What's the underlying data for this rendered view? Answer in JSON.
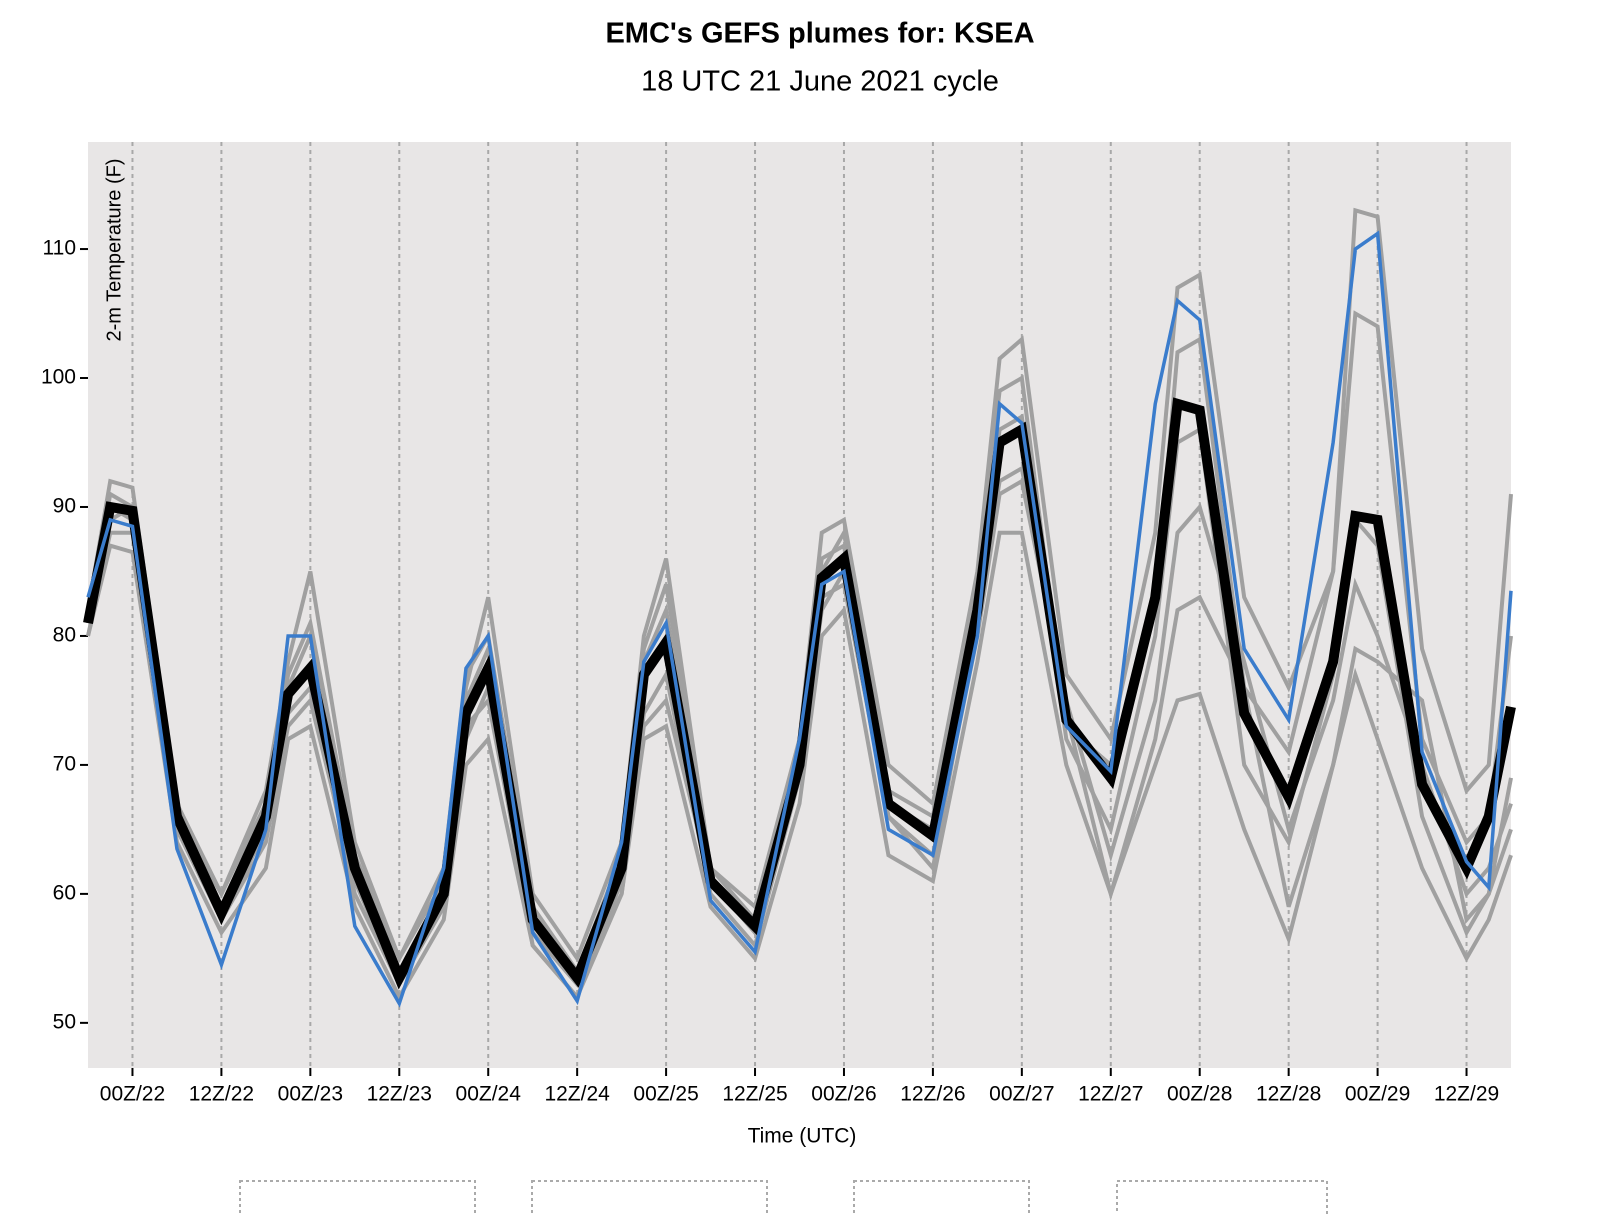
{
  "chart_data": {
    "type": "line",
    "title": "EMC's GEFS plumes for: KSEA",
    "subtitle": "18 UTC 21 June 2021 cycle",
    "x_label": "Time (UTC)",
    "y_label": "2-m Temperature (F)",
    "x": [
      0,
      3,
      6,
      12,
      18,
      24,
      27,
      30,
      36,
      42,
      48,
      51,
      54,
      60,
      66,
      72,
      75,
      78,
      84,
      90,
      96,
      99,
      102,
      108,
      114,
      120,
      123,
      126,
      132,
      138,
      144,
      147,
      150,
      156,
      162,
      168,
      171,
      174,
      180,
      186,
      189,
      192
    ],
    "series": [
      {
        "color": "#a0a0a0",
        "line_width": 4,
        "values": [
          82,
          92,
          91.5,
          67,
          60,
          68,
          78,
          85,
          64,
          55,
          61,
          76,
          83,
          60,
          55,
          64,
          80,
          86,
          62,
          59,
          72,
          88,
          89,
          70,
          67,
          85,
          101.5,
          103,
          77,
          72,
          88,
          107,
          108,
          83,
          76,
          85,
          113,
          112.5,
          79,
          68,
          70,
          91
        ]
      },
      {
        "color": "#a0a0a0",
        "line_width": 4,
        "values": [
          80,
          87,
          86.5,
          64,
          57,
          62,
          72,
          73,
          59,
          52,
          58,
          70,
          72,
          56,
          52,
          60,
          72,
          73,
          59,
          55,
          67,
          80,
          82,
          63,
          61,
          78,
          88,
          88,
          70,
          60,
          70,
          75,
          75.5,
          65,
          56.5,
          70,
          77,
          72,
          62,
          55,
          58,
          63
        ]
      },
      {
        "color": "#a0a0a0",
        "line_width": 4,
        "values": [
          81,
          89,
          90,
          66,
          59,
          66,
          76,
          80,
          62,
          54,
          60,
          75,
          79,
          57,
          53,
          62,
          78,
          82,
          61,
          57,
          71,
          86,
          87,
          67,
          65,
          83,
          96,
          97,
          72,
          65,
          80,
          95,
          96,
          70,
          64,
          77,
          89,
          87,
          66,
          57,
          60,
          69
        ]
      },
      {
        "color": "#a0a0a0",
        "line_width": 4,
        "values": [
          82,
          90,
          89,
          65,
          58,
          65,
          74,
          76,
          60,
          53,
          59,
          72,
          76,
          56,
          52,
          61,
          74,
          77,
          60,
          56,
          69,
          82,
          85,
          66,
          63,
          80,
          91,
          92,
          75,
          63,
          75,
          88,
          90,
          78,
          65,
          75,
          84,
          80,
          70,
          60,
          62,
          67
        ]
      },
      {
        "color": "#a0a0a0",
        "line_width": 4,
        "values": [
          81,
          91,
          90,
          66,
          60,
          67,
          77,
          81,
          63,
          55,
          62,
          77,
          80,
          59,
          54,
          63,
          79,
          84,
          62,
          58,
          70,
          85,
          88,
          68,
          66,
          84,
          99,
          100,
          73,
          70,
          82,
          102,
          103,
          76,
          71,
          85,
          105,
          104,
          72,
          64,
          66,
          80
        ]
      },
      {
        "color": "#a0a0a0",
        "line_width": 4,
        "values": [
          80,
          88,
          88,
          65,
          58,
          64,
          73,
          75,
          61,
          53,
          59,
          73,
          75,
          57,
          53,
          60,
          73,
          75,
          61,
          57,
          69,
          83,
          84,
          66,
          62,
          81,
          92,
          93,
          74,
          60,
          72,
          82,
          83,
          76,
          59,
          70,
          79,
          78,
          75,
          58,
          60,
          65
        ]
      },
      {
        "color": "#000000",
        "line_width": 10,
        "values": [
          81,
          90,
          89.7,
          66,
          58.5,
          66,
          75.5,
          77.5,
          62,
          53.5,
          60,
          74,
          77.5,
          58,
          53.5,
          62,
          77,
          79.5,
          61,
          57.5,
          70,
          84.5,
          86,
          67,
          64.5,
          82,
          95,
          96,
          73.5,
          69,
          83,
          98,
          97.5,
          74,
          67.5,
          78,
          89.3,
          89,
          68.5,
          62,
          66,
          74.5
        ]
      },
      {
        "color": "#3a7ccc",
        "line_width": 3.5,
        "values": [
          83,
          89,
          88.5,
          63.5,
          54.5,
          65,
          80,
          80,
          57.5,
          51.5,
          62,
          77.5,
          80,
          57,
          51.7,
          64,
          78,
          81,
          59.5,
          55.5,
          72,
          84,
          85,
          65,
          63,
          80,
          98,
          96.5,
          73,
          69.5,
          98,
          106,
          104.5,
          79,
          73.5,
          95,
          110,
          111.2,
          71,
          62.5,
          60.5,
          83.5
        ]
      }
    ],
    "xlim": [
      0,
      192
    ],
    "xticks": [
      {
        "value": 6,
        "label": "00Z/22"
      },
      {
        "value": 18,
        "label": "12Z/22"
      },
      {
        "value": 30,
        "label": "00Z/23"
      },
      {
        "value": 42,
        "label": "12Z/23"
      },
      {
        "value": 54,
        "label": "00Z/24"
      },
      {
        "value": 66,
        "label": "12Z/24"
      },
      {
        "value": 78,
        "label": "00Z/25"
      },
      {
        "value": 90,
        "label": "12Z/25"
      },
      {
        "value": 102,
        "label": "00Z/26"
      },
      {
        "value": 114,
        "label": "12Z/26"
      },
      {
        "value": 126,
        "label": "00Z/27"
      },
      {
        "value": 138,
        "label": "12Z/27"
      },
      {
        "value": 150,
        "label": "00Z/28"
      },
      {
        "value": 162,
        "label": "12Z/28"
      },
      {
        "value": 174,
        "label": "00Z/29"
      },
      {
        "value": 186,
        "label": "12Z/29"
      }
    ],
    "ylim": [
      46.5,
      118.3
    ],
    "yticks": [
      50,
      60,
      70,
      80,
      90,
      100,
      110
    ],
    "grid": true
  }
}
